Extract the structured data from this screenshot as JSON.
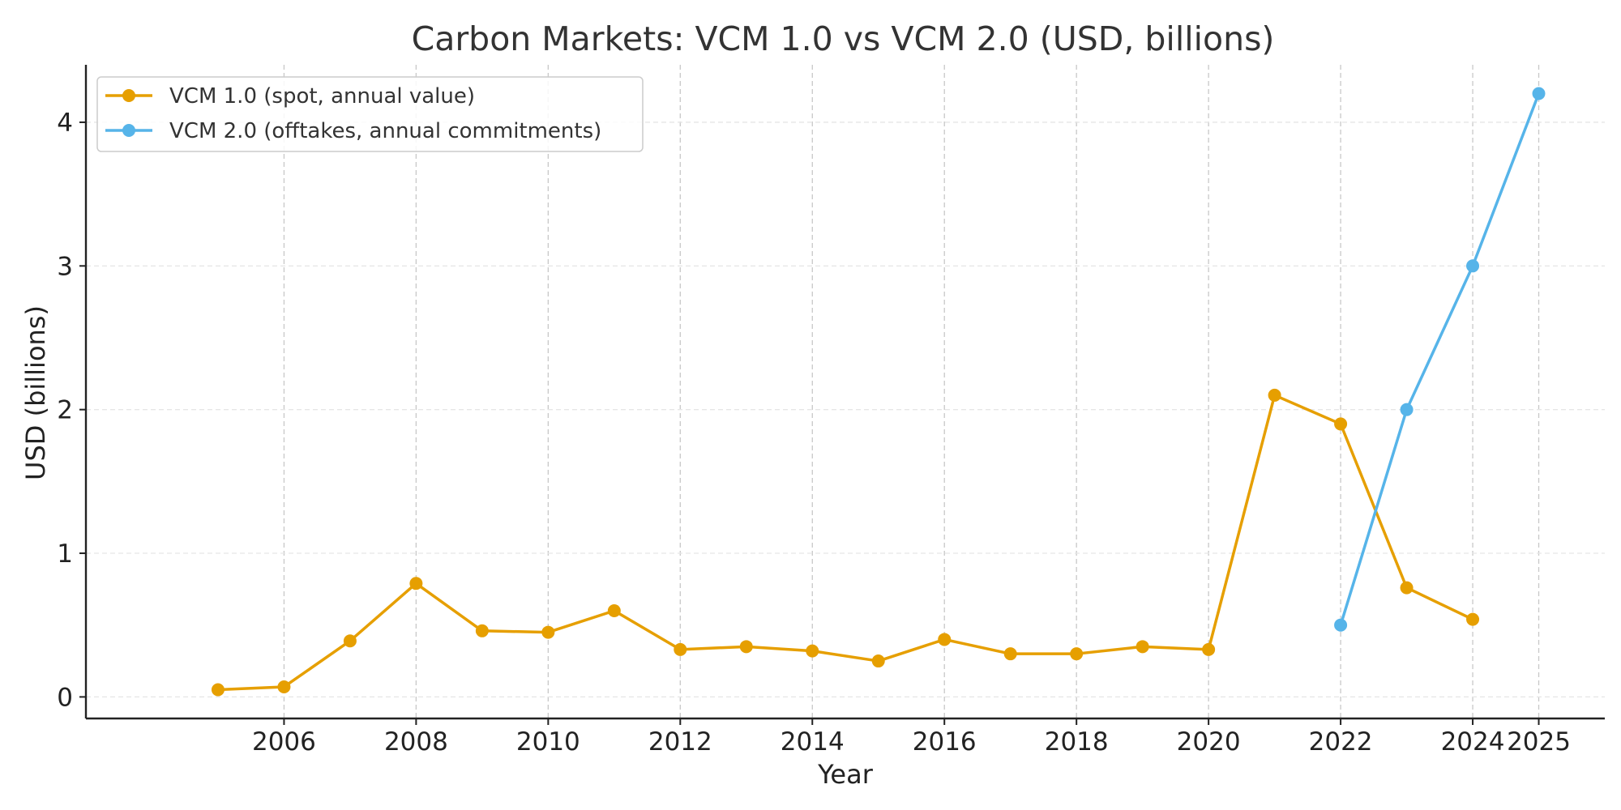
{
  "chart_data": {
    "type": "line",
    "title": "Carbon Markets: VCM 1.0 vs VCM 2.0 (USD, billions)",
    "xlabel": "Year",
    "ylabel": "USD (billions)",
    "xlim": [
      2003.0,
      2026.0
    ],
    "ylim": [
      -0.15,
      4.4
    ],
    "xticks": [
      2006,
      2008,
      2010,
      2012,
      2014,
      2016,
      2018,
      2020,
      2022,
      2024,
      2025
    ],
    "yticks": [
      0,
      1,
      2,
      3,
      4
    ],
    "grid": {
      "x": true,
      "y": true
    },
    "legend": "top-left",
    "series": [
      {
        "name": "VCM 1.0 (spot, annual value)",
        "color": "#E69F00",
        "x": [
          2005,
          2006,
          2007,
          2008,
          2009,
          2010,
          2011,
          2012,
          2013,
          2014,
          2015,
          2016,
          2017,
          2018,
          2019,
          2020,
          2021,
          2022,
          2023,
          2024
        ],
        "values": [
          0.05,
          0.07,
          0.39,
          0.79,
          0.46,
          0.45,
          0.6,
          0.33,
          0.35,
          0.32,
          0.25,
          0.4,
          0.3,
          0.3,
          0.35,
          0.33,
          2.1,
          1.9,
          0.76,
          0.54
        ]
      },
      {
        "name": "VCM 2.0 (offtakes, annual commitments)",
        "color": "#56B4E9",
        "x": [
          2022,
          2023,
          2024,
          2025
        ],
        "values": [
          0.5,
          2.0,
          3.0,
          4.2
        ]
      }
    ]
  }
}
